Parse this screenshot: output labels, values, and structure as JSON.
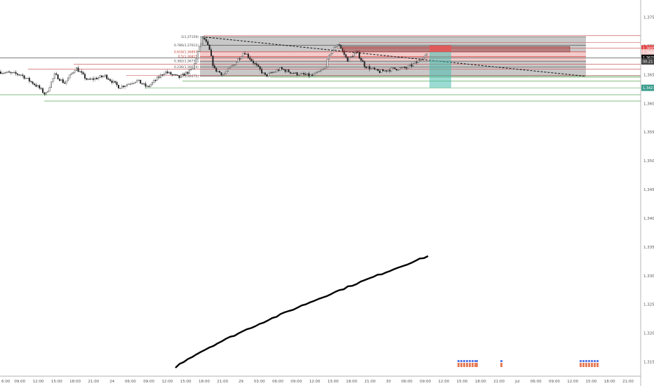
{
  "chart_data": {
    "type": "candlestick",
    "title": "",
    "price_axis": {
      "ticks": [
        "1,37500",
        "1,37000",
        "1,36500",
        "1,36000",
        "1,35500",
        "1,35000",
        "1,34500",
        "1,34000",
        "1,33500",
        "1,33000",
        "1,32500",
        "1,32000",
        "1,31500"
      ],
      "ylim": [
        1.3125,
        1.378
      ],
      "current_price_label": "1,36794",
      "current_sub_label": "00:21",
      "red_tag_label": "1,36959",
      "teal_tag_label": "1,34271",
      "pink_tag_label": "1,36887"
    },
    "time_axis": {
      "ticks": [
        "6:00",
        "09:00",
        "12:00",
        "15:00",
        "18:00",
        "21:00",
        "24",
        "06:00",
        "09:00",
        "12:00",
        "15:00",
        "18:00",
        "21:00",
        "29",
        "03:00",
        "06:00",
        "09:00",
        "12:00",
        "15:00",
        "18:00",
        "21:00",
        "30",
        "06:00",
        "09:00",
        "12:00",
        "15:00",
        "18:00",
        "21:00",
        "Jul",
        "06:00",
        "09:00",
        "12:00",
        "15:00",
        "18:00",
        "21:00"
      ]
    },
    "fib_levels": [
      {
        "label": "1(1,37159)",
        "price": 1.37159,
        "color": "#555555"
      },
      {
        "label": "0.786(1,37012)",
        "price": 1.37012,
        "color": "#555555"
      },
      {
        "label": "0.618(1,36897)",
        "price": 1.36897,
        "color": "#d23c3c"
      },
      {
        "label": "0.5(1,36815)",
        "price": 1.36815,
        "color": "#d23c3c"
      },
      {
        "label": "0.382(1,36735)",
        "price": 1.36735,
        "color": "#555555"
      },
      {
        "label": "0.236(1,36634)",
        "price": 1.36634,
        "color": "#555555"
      },
      {
        "label": "0(1,36472)",
        "price": 1.36472,
        "color": "#555555"
      }
    ],
    "series": [
      {
        "name": "",
        "kind": "ohlc"
      },
      {
        "name": "",
        "kind": "line",
        "color": "#000000"
      }
    ],
    "event_markers": [
      "flags",
      "flags",
      "flags"
    ],
    "grid": false
  }
}
